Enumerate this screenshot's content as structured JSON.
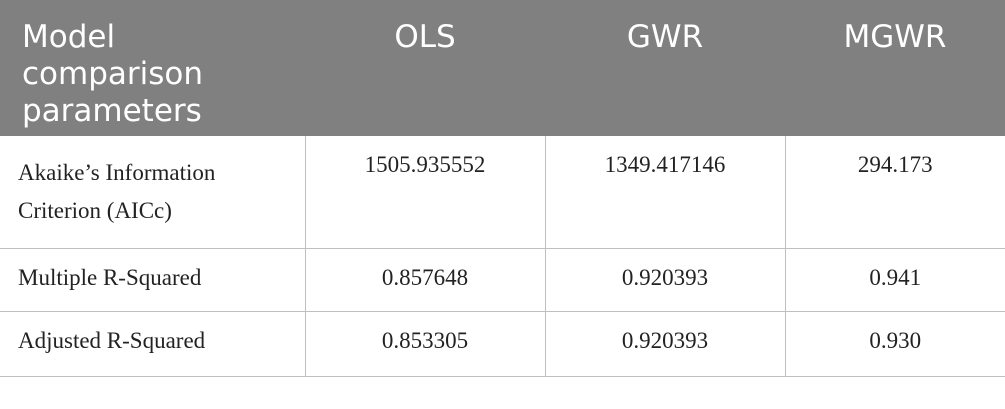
{
  "table": {
    "header": [
      "Model comparison parameters",
      "OLS",
      "GWR",
      "MGWR"
    ],
    "rows": [
      [
        "Akaike’s Information Criterion (AICc)",
        "1505.935552",
        "1349.417146",
        "294.173"
      ],
      [
        "Multiple R-Squared",
        "0.857648",
        "0.920393",
        "0.941"
      ],
      [
        "Adjusted R-Squared",
        "0.853305",
        "0.920393",
        "0.930"
      ]
    ]
  }
}
